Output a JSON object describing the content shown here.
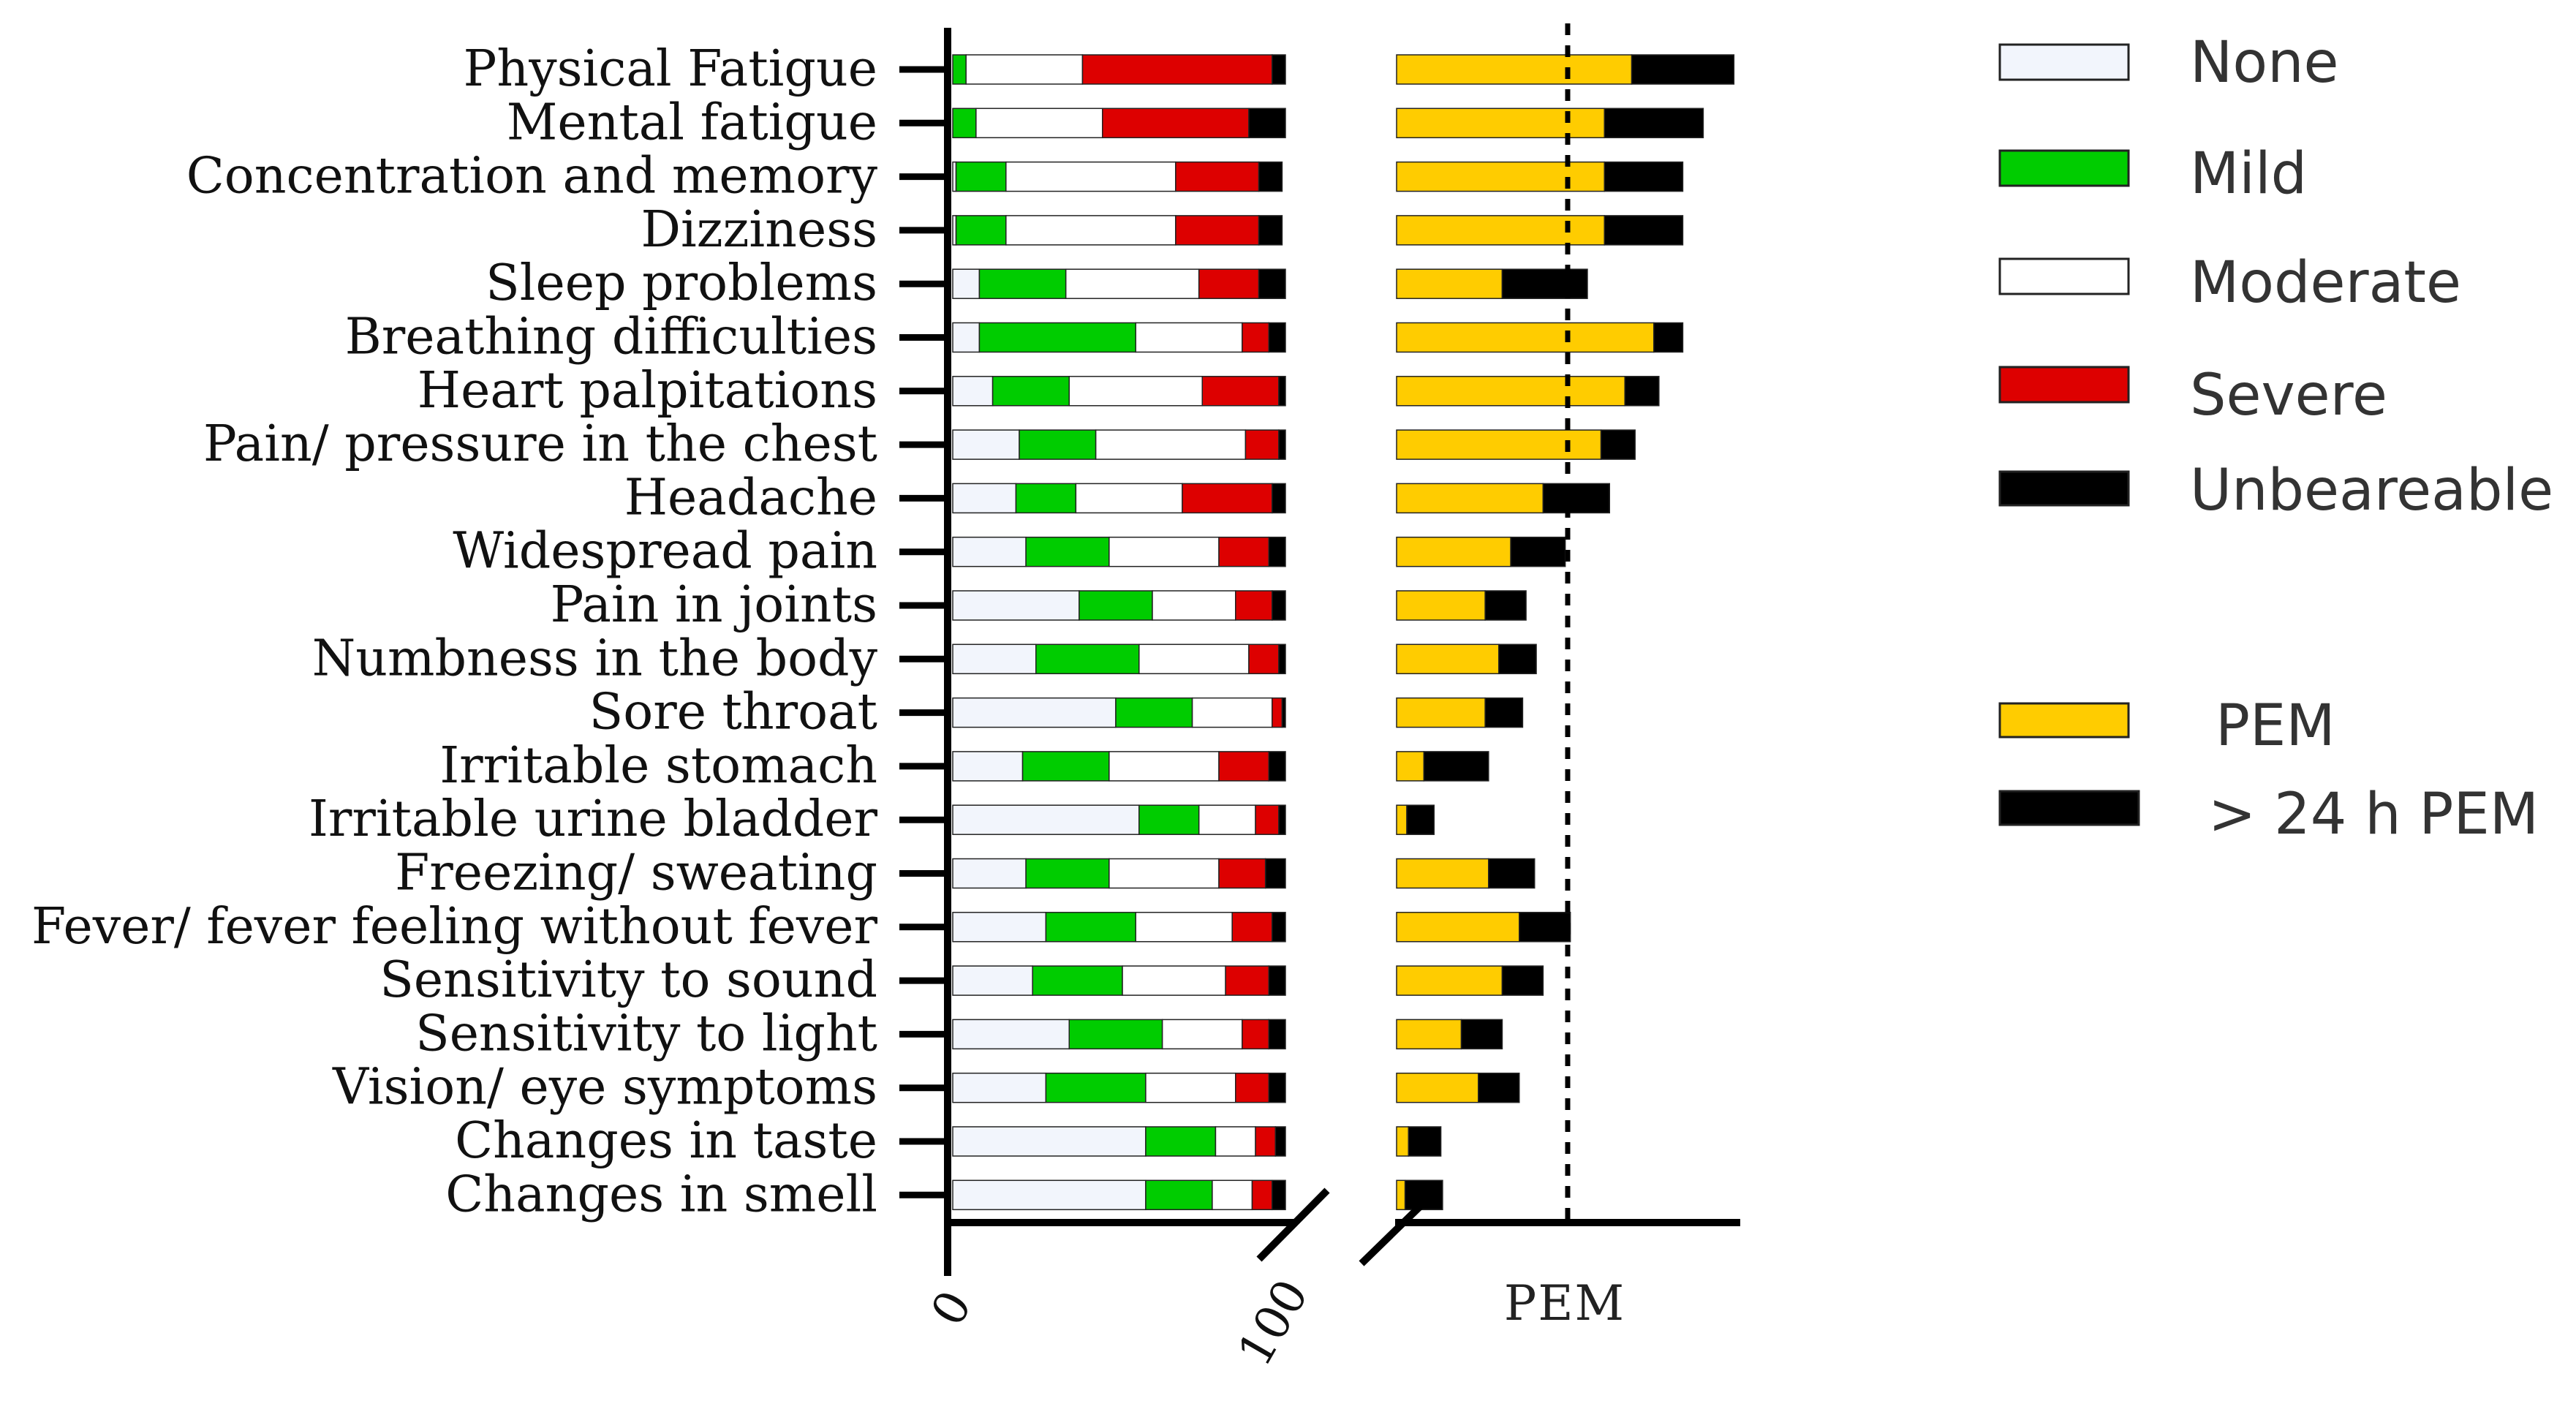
{
  "chart_data": {
    "type": "bar",
    "stacked": true,
    "orientation": "horizontal",
    "categories": [
      "Physical Fatigue",
      "Mental fatigue",
      "Concentration and memory",
      "Dizziness",
      "Sleep problems",
      "Breathing difficulties",
      "Heart palpitations",
      "Pain/ pressure in the chest",
      "Headache",
      "Widespread pain",
      "Pain in joints",
      "Numbness in the body",
      "Sore throat",
      "Irritable stomach",
      "Irritable urine bladder",
      "Freezing/ sweating",
      "Fever/ fever feeling without fever",
      "Sensitivity to sound",
      "Sensitivity to light",
      "Vision/ eye symptoms",
      "Changes in taste",
      "Changes in smell"
    ],
    "severity": {
      "xlim": [
        0,
        100
      ],
      "ticks": [
        "0",
        "100"
      ],
      "series": [
        {
          "name": "None",
          "color": "#f2f5fc",
          "values": [
            0,
            0,
            1,
            1,
            8,
            8,
            12,
            20,
            19,
            22,
            38,
            25,
            49,
            21,
            56,
            22,
            28,
            24,
            35,
            28,
            58,
            58
          ]
        },
        {
          "name": "Mild",
          "color": "#00cc00",
          "values": [
            4,
            7,
            15,
            15,
            26,
            47,
            23,
            23,
            18,
            25,
            22,
            31,
            23,
            26,
            18,
            25,
            27,
            27,
            28,
            30,
            21,
            20
          ]
        },
        {
          "name": "Moderate",
          "color": "#ffffff",
          "values": [
            35,
            38,
            51,
            51,
            40,
            32,
            40,
            45,
            32,
            33,
            25,
            33,
            24,
            33,
            17,
            33,
            29,
            31,
            24,
            27,
            12,
            12
          ]
        },
        {
          "name": "Severe",
          "color": "#dd0000",
          "values": [
            57,
            44,
            25,
            25,
            18,
            8,
            23,
            10,
            27,
            15,
            11,
            9,
            3,
            15,
            7,
            14,
            12,
            13,
            8,
            10,
            6,
            6
          ]
        },
        {
          "name": "Unbeareable",
          "color": "#000000",
          "values": [
            4,
            11,
            7,
            7,
            8,
            5,
            2,
            2,
            4,
            5,
            4,
            2,
            1,
            5,
            2,
            6,
            4,
            5,
            5,
            5,
            3,
            4
          ]
        }
      ]
    },
    "pem": {
      "xlabel": "PEM",
      "reference_line": 100,
      "series": [
        {
          "name": "PEM",
          "color": "#ffcc00",
          "values": [
            138,
            122,
            122,
            122,
            62,
            151,
            134,
            120,
            86,
            67,
            52,
            60,
            52,
            16,
            6,
            54,
            72,
            62,
            38,
            48,
            7,
            5
          ]
        },
        {
          "name": "> 24 h PEM",
          "color": "#000000",
          "values": [
            60,
            58,
            46,
            46,
            50,
            17,
            20,
            20,
            39,
            32,
            24,
            22,
            22,
            38,
            16,
            27,
            30,
            24,
            24,
            24,
            19,
            22
          ]
        }
      ]
    },
    "legend": {
      "position": "right",
      "items": [
        {
          "label": "None",
          "color": "#f2f5fc"
        },
        {
          "label": "Mild",
          "color": "#00cc00"
        },
        {
          "label": "Moderate",
          "color": "#ffffff"
        },
        {
          "label": "Severe",
          "color": "#dd0000"
        },
        {
          "label": "Unbeareable",
          "color": "#000000"
        },
        {
          "label": "PEM",
          "color": "#ffcc00"
        },
        {
          "label": "> 24 h PEM",
          "color": "#000000"
        }
      ]
    }
  }
}
